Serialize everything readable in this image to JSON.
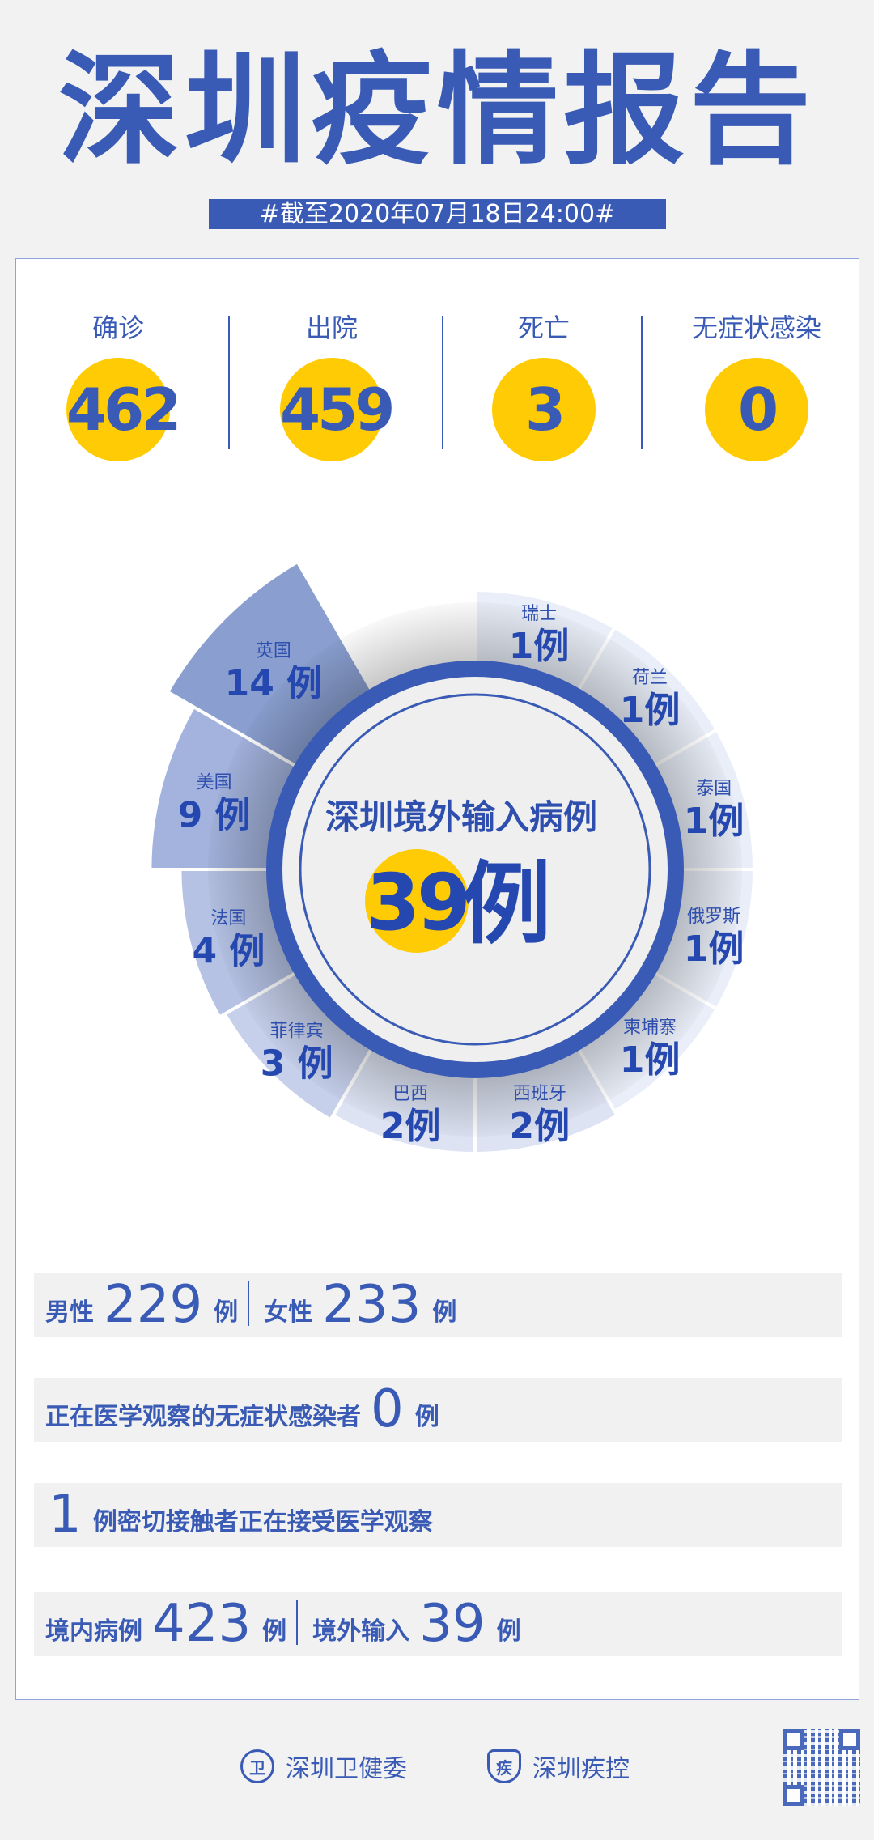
{
  "title": "深圳疫情报告",
  "date": "#截至2020年07月18日24:00#",
  "stats": [
    {
      "label": "确诊",
      "value": "462"
    },
    {
      "label": "出院",
      "value": "459"
    },
    {
      "label": "死亡",
      "value": "3"
    },
    {
      "label": "无症状感染",
      "value": "0"
    }
  ],
  "colors": {
    "accent": "#3a5bb5",
    "highlight": "#ffcb05"
  },
  "chart_data": {
    "type": "pie",
    "title": "深圳境外输入病例",
    "total": "39",
    "unit": "例",
    "categories": [
      "瑞士",
      "荷兰",
      "泰国",
      "俄罗斯",
      "柬埔寨",
      "西班牙",
      "巴西",
      "菲律宾",
      "法国",
      "美国",
      "英国"
    ],
    "values": [
      1,
      1,
      1,
      1,
      1,
      2,
      2,
      3,
      4,
      9,
      14
    ],
    "labels": [
      "1例",
      "1例",
      "1例",
      "1例",
      "1例",
      "2例",
      "2例",
      "3 例",
      "4 例",
      "9 例",
      "14 例"
    ]
  },
  "rows": {
    "male_label": "男性",
    "male": "229",
    "female_label": "女性",
    "female": "233",
    "unit": "例",
    "asym_label": "正在医学观察的无症状感染者",
    "asym": "0",
    "contacts": "1",
    "contacts_label": "例密切接触者正在接受医学观察",
    "local_label": "境内病例",
    "local": "423",
    "imported_label": "境外输入",
    "imported": "39"
  },
  "footer": {
    "org1": "深圳卫健委",
    "org2": "深圳疾控"
  }
}
